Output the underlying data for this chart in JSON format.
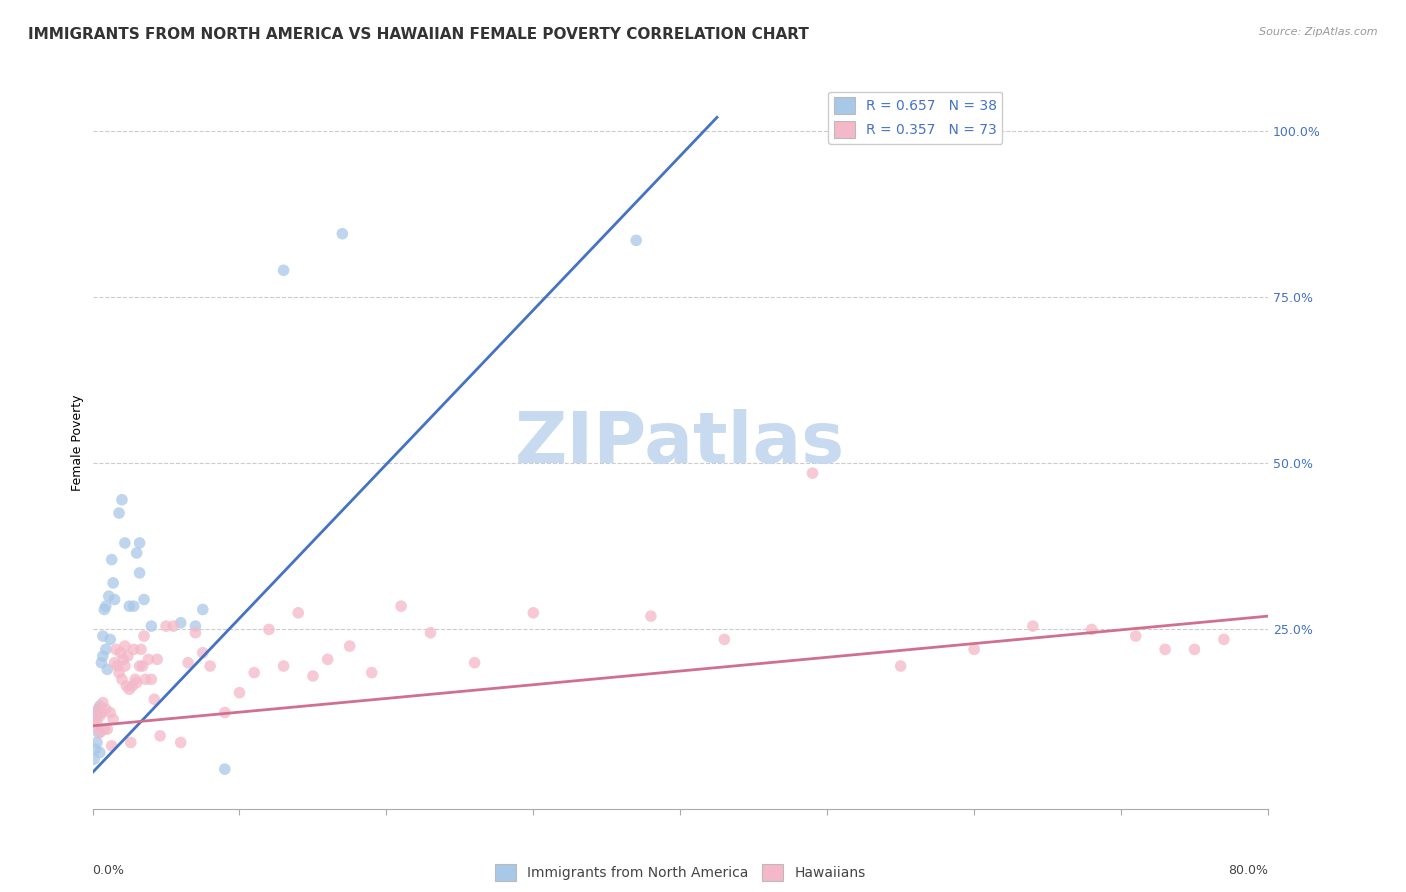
{
  "title": "IMMIGRANTS FROM NORTH AMERICA VS HAWAIIAN FEMALE POVERTY CORRELATION CHART",
  "source": "Source: ZipAtlas.com",
  "ylabel": "Female Poverty",
  "ytick_labels": [
    "100.0%",
    "75.0%",
    "50.0%",
    "25.0%"
  ],
  "ytick_values": [
    1.0,
    0.75,
    0.5,
    0.25
  ],
  "xlim": [
    0.0,
    0.8
  ],
  "ylim": [
    -0.02,
    1.08
  ],
  "blue_color": "#a8c8e8",
  "pink_color": "#f4b8c8",
  "blue_line_color": "#4472c4",
  "pink_line_color": "#d07090",
  "legend_label_blue": "R = 0.657   N = 38",
  "legend_label_pink": "R = 0.357   N = 73",
  "legend_label_bottom_blue": "Immigrants from North America",
  "legend_label_bottom_pink": "Hawaiians",
  "watermark": "ZIPatlas",
  "blue_scatter_x": [
    0.001,
    0.002,
    0.002,
    0.003,
    0.003,
    0.004,
    0.004,
    0.005,
    0.005,
    0.006,
    0.007,
    0.007,
    0.008,
    0.009,
    0.009,
    0.01,
    0.011,
    0.012,
    0.013,
    0.014,
    0.015,
    0.018,
    0.02,
    0.022,
    0.025,
    0.028,
    0.03,
    0.032,
    0.032,
    0.035,
    0.04,
    0.06,
    0.07,
    0.075,
    0.09,
    0.13,
    0.17,
    0.37
  ],
  "blue_scatter_y": [
    0.055,
    0.07,
    0.12,
    0.08,
    0.12,
    0.095,
    0.13,
    0.065,
    0.135,
    0.2,
    0.21,
    0.24,
    0.28,
    0.285,
    0.22,
    0.19,
    0.3,
    0.235,
    0.355,
    0.32,
    0.295,
    0.425,
    0.445,
    0.38,
    0.285,
    0.285,
    0.365,
    0.38,
    0.335,
    0.295,
    0.255,
    0.26,
    0.255,
    0.28,
    0.04,
    0.79,
    0.845,
    0.835
  ],
  "pink_scatter_x": [
    0.001,
    0.002,
    0.003,
    0.004,
    0.005,
    0.005,
    0.006,
    0.007,
    0.008,
    0.009,
    0.01,
    0.012,
    0.013,
    0.014,
    0.015,
    0.016,
    0.017,
    0.018,
    0.019,
    0.02,
    0.021,
    0.022,
    0.022,
    0.023,
    0.024,
    0.025,
    0.026,
    0.027,
    0.028,
    0.029,
    0.03,
    0.032,
    0.033,
    0.034,
    0.035,
    0.036,
    0.038,
    0.04,
    0.042,
    0.044,
    0.046,
    0.05,
    0.055,
    0.06,
    0.065,
    0.07,
    0.075,
    0.08,
    0.09,
    0.1,
    0.11,
    0.12,
    0.13,
    0.14,
    0.15,
    0.16,
    0.175,
    0.19,
    0.21,
    0.23,
    0.26,
    0.3,
    0.38,
    0.43,
    0.49,
    0.55,
    0.6,
    0.64,
    0.68,
    0.71,
    0.73,
    0.75,
    0.77
  ],
  "pink_scatter_y": [
    0.12,
    0.105,
    0.11,
    0.13,
    0.095,
    0.12,
    0.125,
    0.14,
    0.1,
    0.13,
    0.1,
    0.125,
    0.075,
    0.115,
    0.2,
    0.22,
    0.195,
    0.185,
    0.215,
    0.175,
    0.205,
    0.225,
    0.195,
    0.165,
    0.21,
    0.16,
    0.08,
    0.165,
    0.22,
    0.175,
    0.17,
    0.195,
    0.22,
    0.195,
    0.24,
    0.175,
    0.205,
    0.175,
    0.145,
    0.205,
    0.09,
    0.255,
    0.255,
    0.08,
    0.2,
    0.245,
    0.215,
    0.195,
    0.125,
    0.155,
    0.185,
    0.25,
    0.195,
    0.275,
    0.18,
    0.205,
    0.225,
    0.185,
    0.285,
    0.245,
    0.2,
    0.275,
    0.27,
    0.235,
    0.485,
    0.195,
    0.22,
    0.255,
    0.25,
    0.24,
    0.22,
    0.22,
    0.235
  ],
  "blue_trendline_x": [
    0.0,
    0.425
  ],
  "blue_trendline_y": [
    0.035,
    1.02
  ],
  "pink_trendline_x": [
    0.0,
    0.8
  ],
  "pink_trendline_y": [
    0.105,
    0.27
  ],
  "grid_color": "#cccccc",
  "background_color": "#ffffff",
  "title_fontsize": 11,
  "axis_label_fontsize": 9,
  "tick_fontsize": 9,
  "legend_fontsize": 10,
  "watermark_color": "#c8daf0",
  "watermark_fontsize": 52
}
